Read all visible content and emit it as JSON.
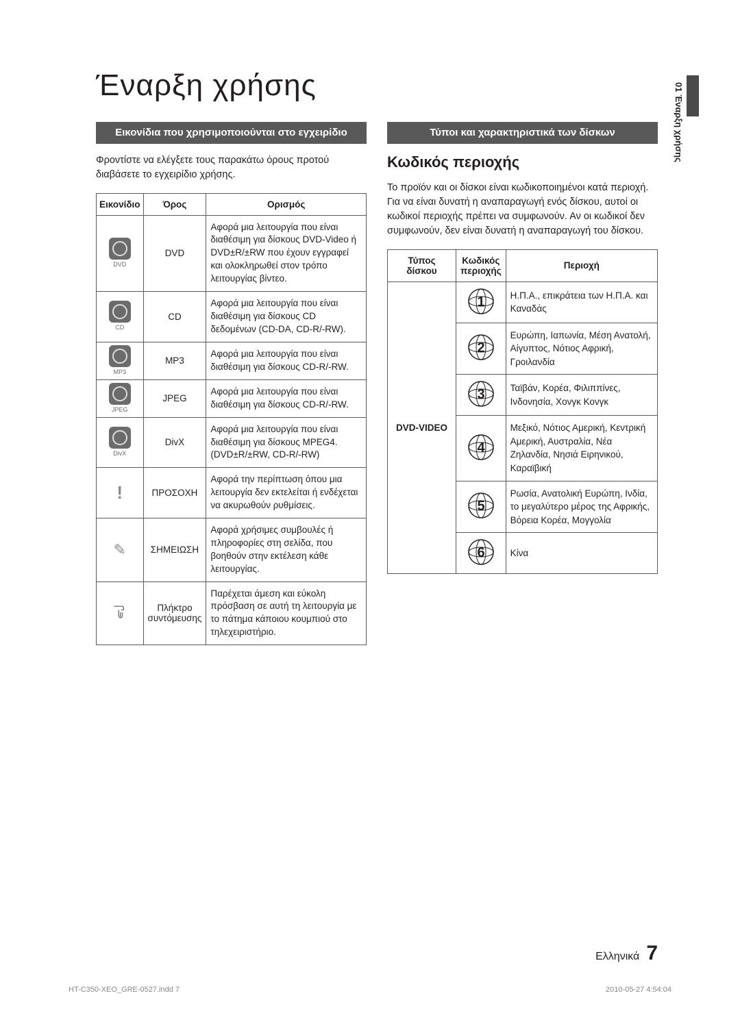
{
  "page": {
    "title": "Έναρξη χρήσης",
    "lang_label": "Ελληνικά",
    "page_number": "7",
    "side_tab": "01  Έναρξη χρήσης",
    "print_left": "HT-C350-XEO_GRE-0527.indd   7",
    "print_right": "2010-05-27   4:54:04"
  },
  "left": {
    "section_bar": "Εικονίδια που χρησιμοποιούνται στο εγχειρίδιο",
    "intro": "Φροντίστε να ελέγξετε τους παρακάτω όρους προτού διαβάσετε το εγχειρίδιο χρήσης.",
    "headers": {
      "icon": "Εικονίδιο",
      "term": "Όρος",
      "def": "Ορισμός"
    },
    "rows": [
      {
        "icon_label": "DVD",
        "term": "DVD",
        "def": "Αφορά μια λειτουργία που είναι διαθέσιμη για δίσκους DVD-Video ή DVD±R/±RW που έχουν εγγραφεί και ολοκληρωθεί στον τρόπο λειτουργίας βίντεο."
      },
      {
        "icon_label": "CD",
        "term": "CD",
        "def": "Αφορά μια λειτουργία που είναι διαθέσιμη για δίσκους CD δεδομένων (CD-DA, CD-R/-RW)."
      },
      {
        "icon_label": "MP3",
        "term": "MP3",
        "def": "Αφορά μια λειτουργία που είναι διαθέσιμη για δίσκους CD-R/-RW."
      },
      {
        "icon_label": "JPEG",
        "term": "JPEG",
        "def": "Αφορά μια λειτουργία που είναι διαθέσιμη για δίσκους CD-R/-RW."
      },
      {
        "icon_label": "DivX",
        "term": "DivX",
        "def": "Αφορά μια λειτουργία που είναι διαθέσιμη για δίσκους MPEG4. (DVD±R/±RW, CD-R/-RW)"
      },
      {
        "icon_type": "warn",
        "term": "ΠΡΟΣΟΧΗ",
        "def": "Αφορά την περίπτωση όπου μια λειτουργία δεν εκτελείται ή ενδέχεται να ακυρωθούν ρυθμίσεις."
      },
      {
        "icon_type": "note",
        "term": "ΣΗΜΕΙΩΣΗ",
        "def": "Αφορά χρήσιμες συμβουλές ή πληροφορίες στη σελίδα, που βοηθούν στην εκτέλεση κάθε λειτουργίας."
      },
      {
        "icon_type": "hand",
        "term": "Πλήκτρο συντόμευσης",
        "def": "Παρέχεται άμεση και εύκολη πρόσβαση σε αυτή τη λειτουργία με το πάτημα κάποιου κουμπιού στο τηλεχειριστήριο."
      }
    ]
  },
  "right": {
    "section_bar": "Τύποι και χαρακτηριστικά των δίσκων",
    "sub_heading": "Κωδικός περιοχής",
    "intro": "Το προϊόν και οι δίσκοι είναι κωδικοποιημένοι κατά περιοχή. Για να είναι δυνατή η αναπαραγωγή ενός δίσκου, αυτοί οι κωδικοί περιοχής πρέπει να συμφωνούν. Αν οι κωδικοί δεν συμφωνούν, δεν είναι δυνατή η αναπαραγωγή του δίσκου.",
    "headers": {
      "type": "Τύπος δίσκου",
      "code": "Κωδικός περιοχής",
      "region": "Περιοχή"
    },
    "disc_type": "DVD-VIDEO",
    "regions": [
      {
        "num": "1",
        "desc": "Η.Π.Α., επικράτεια των Η.Π.Α. και Καναδάς"
      },
      {
        "num": "2",
        "desc": "Ευρώπη, Ιαπωνία, Μέση Ανατολή, Αίγυπτος, Νότιος Αφρική, Γροιλανδία"
      },
      {
        "num": "3",
        "desc": "Ταϊβάν, Κορέα, Φιλιππίνες, Ινδονησία, Χονγκ Κονγκ"
      },
      {
        "num": "4",
        "desc": "Μεξικό, Νότιος Αμερική, Κεντρική Αμερική, Αυστραλία, Νέα Ζηλανδία, Νησιά Ειρηνικού, Καραϊβική"
      },
      {
        "num": "5",
        "desc": "Ρωσία, Ανατολική Ευρώπη, Ινδία, το μεγαλύτερο μέρος της Αφρικής, Βόρεια Κορέα, Μογγολία"
      },
      {
        "num": "6",
        "desc": "Κίνα"
      }
    ]
  }
}
